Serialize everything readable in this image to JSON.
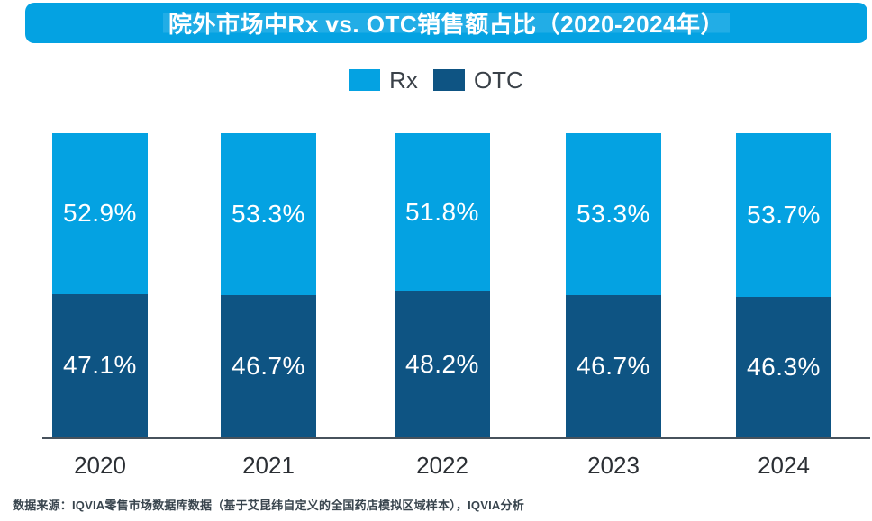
{
  "title": {
    "text": "院外市场中Rx vs. OTC销售额占比（2020-2024年）"
  },
  "colors": {
    "rx": "#04A2E2",
    "otc": "#0E5483",
    "title_bg": "#04A2E2",
    "title_text": "#FFFFFF",
    "axis_line": "#47525C",
    "value_label": "#FFFFFF"
  },
  "legend": {
    "items": [
      {
        "label": "Rx",
        "color": "#04A2E2"
      },
      {
        "label": "OTC",
        "color": "#0E5483"
      }
    ]
  },
  "chart_data": {
    "type": "bar",
    "stacked": true,
    "title": "院外市场中Rx vs. OTC销售额占比（2020-2024年）",
    "categories": [
      "2020",
      "2021",
      "2022",
      "2023",
      "2024"
    ],
    "series": [
      {
        "name": "Rx",
        "color": "#04A2E2",
        "values": [
          52.9,
          53.3,
          51.8,
          53.3,
          53.7
        ],
        "labels": [
          "52.9%",
          "53.3%",
          "51.8%",
          "53.3%",
          "53.7%"
        ]
      },
      {
        "name": "OTC",
        "color": "#0E5483",
        "values": [
          47.1,
          46.7,
          48.2,
          46.7,
          46.3
        ],
        "labels": [
          "47.1%",
          "46.7%",
          "48.2%",
          "46.7%",
          "46.3%"
        ]
      }
    ],
    "ylabel": "",
    "xlabel": "",
    "ylim": [
      0,
      100
    ],
    "grid": false,
    "legend_position": "top"
  },
  "footer": {
    "source": "数据来源：IQVIA零售市场数据库数据（基于艾昆纬自定义的全国药店模拟区域样本），IQVIA分析"
  }
}
